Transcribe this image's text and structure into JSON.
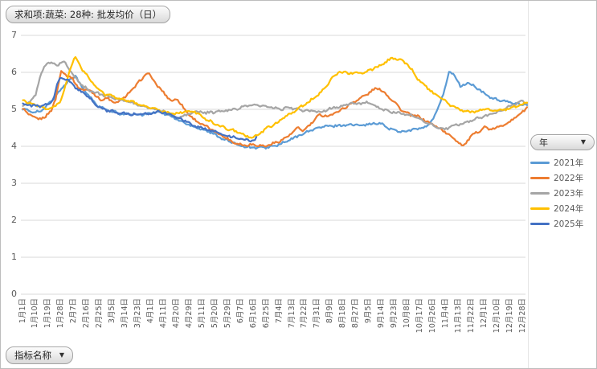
{
  "buttons": {
    "value_field": "求和项:蔬菜: 28种: 批发均价（日）",
    "year_field": "年",
    "indicator_field": "指标名称",
    "dropdown_glyph": "▼"
  },
  "chart_data": {
    "type": "line",
    "title": "",
    "xlabel": "",
    "ylabel": "",
    "ylim": [
      0,
      7
    ],
    "y_ticks": [
      0,
      1,
      2,
      3,
      4,
      5,
      6,
      7
    ],
    "grid": "horizontal",
    "legend_position": "right",
    "legend_title": "年",
    "n_categories": 355,
    "tick_step": 9,
    "x_tick_labels": [
      "1月1日",
      "1月10日",
      "1月19日",
      "1月28日",
      "2月7日",
      "2月16日",
      "2月25日",
      "3月5日",
      "3月14日",
      "3月23日",
      "4月1日",
      "4月11日",
      "4月20日",
      "4月29日",
      "5月11日",
      "5月20日",
      "5月29日",
      "6月7日",
      "6月16日",
      "6月25日",
      "7月4日",
      "7月13日",
      "7月22日",
      "7月31日",
      "8月9日",
      "8月18日",
      "8月27日",
      "9月5日",
      "9月14日",
      "9月23日",
      "10月8日",
      "10月17日",
      "10月26日",
      "11月4日",
      "11月13日",
      "11月22日",
      "12月1日",
      "12月10日",
      "12月19日",
      "12月28日"
    ],
    "series": [
      {
        "name": "2021年",
        "color": "#5B9BD5",
        "points": [
          [
            0,
            5.0
          ],
          [
            0.021,
            4.93
          ],
          [
            0.037,
            4.95
          ],
          [
            0.048,
            5.1
          ],
          [
            0.061,
            5.3
          ],
          [
            0.076,
            5.55
          ],
          [
            0.092,
            5.8
          ],
          [
            0.105,
            5.92
          ],
          [
            0.116,
            5.6
          ],
          [
            0.129,
            5.4
          ],
          [
            0.148,
            5.1
          ],
          [
            0.167,
            4.97
          ],
          [
            0.196,
            4.88
          ],
          [
            0.22,
            4.85
          ],
          [
            0.244,
            4.87
          ],
          [
            0.268,
            4.95
          ],
          [
            0.287,
            4.85
          ],
          [
            0.307,
            4.72
          ],
          [
            0.326,
            4.6
          ],
          [
            0.347,
            4.5
          ],
          [
            0.368,
            4.4
          ],
          [
            0.39,
            4.25
          ],
          [
            0.411,
            4.12
          ],
          [
            0.432,
            4.02
          ],
          [
            0.454,
            3.97
          ],
          [
            0.476,
            3.96
          ],
          [
            0.498,
            4.0
          ],
          [
            0.522,
            4.12
          ],
          [
            0.546,
            4.28
          ],
          [
            0.57,
            4.43
          ],
          [
            0.594,
            4.53
          ],
          [
            0.618,
            4.55
          ],
          [
            0.642,
            4.58
          ],
          [
            0.666,
            4.58
          ],
          [
            0.689,
            4.6
          ],
          [
            0.709,
            4.62
          ],
          [
            0.724,
            4.5
          ],
          [
            0.74,
            4.42
          ],
          [
            0.756,
            4.4
          ],
          [
            0.772,
            4.45
          ],
          [
            0.788,
            4.48
          ],
          [
            0.804,
            4.55
          ],
          [
            0.82,
            4.9
          ],
          [
            0.833,
            5.4
          ],
          [
            0.846,
            6.02
          ],
          [
            0.855,
            5.95
          ],
          [
            0.868,
            5.6
          ],
          [
            0.881,
            5.72
          ],
          [
            0.896,
            5.62
          ],
          [
            0.912,
            5.45
          ],
          [
            0.931,
            5.3
          ],
          [
            0.952,
            5.22
          ],
          [
            0.973,
            5.17
          ],
          [
            0.989,
            5.14
          ],
          [
            1,
            5.12
          ]
        ]
      },
      {
        "name": "2022年",
        "color": "#ED7D31",
        "points": [
          [
            0,
            5.05
          ],
          [
            0.01,
            4.85
          ],
          [
            0.021,
            4.8
          ],
          [
            0.033,
            4.72
          ],
          [
            0.045,
            4.82
          ],
          [
            0.056,
            4.95
          ],
          [
            0.065,
            5.3
          ],
          [
            0.076,
            6.05
          ],
          [
            0.084,
            5.95
          ],
          [
            0.097,
            5.85
          ],
          [
            0.108,
            5.62
          ],
          [
            0.121,
            5.5
          ],
          [
            0.132,
            5.55
          ],
          [
            0.145,
            5.35
          ],
          [
            0.158,
            5.25
          ],
          [
            0.169,
            5.3
          ],
          [
            0.183,
            5.15
          ],
          [
            0.199,
            5.3
          ],
          [
            0.215,
            5.5
          ],
          [
            0.231,
            5.75
          ],
          [
            0.248,
            6.0
          ],
          [
            0.263,
            5.7
          ],
          [
            0.279,
            5.45
          ],
          [
            0.295,
            5.22
          ],
          [
            0.307,
            5.28
          ],
          [
            0.323,
            4.95
          ],
          [
            0.342,
            4.7
          ],
          [
            0.361,
            4.55
          ],
          [
            0.381,
            4.4
          ],
          [
            0.4,
            4.25
          ],
          [
            0.419,
            4.1
          ],
          [
            0.438,
            4.03
          ],
          [
            0.459,
            4.05
          ],
          [
            0.479,
            4.0
          ],
          [
            0.498,
            4.08
          ],
          [
            0.518,
            4.2
          ],
          [
            0.533,
            4.35
          ],
          [
            0.546,
            4.5
          ],
          [
            0.557,
            4.42
          ],
          [
            0.572,
            4.62
          ],
          [
            0.588,
            4.85
          ],
          [
            0.607,
            4.82
          ],
          [
            0.626,
            4.95
          ],
          [
            0.645,
            5.1
          ],
          [
            0.662,
            5.25
          ],
          [
            0.682,
            5.4
          ],
          [
            0.697,
            5.55
          ],
          [
            0.709,
            5.55
          ],
          [
            0.721,
            5.4
          ],
          [
            0.737,
            5.2
          ],
          [
            0.753,
            4.95
          ],
          [
            0.769,
            4.85
          ],
          [
            0.785,
            4.8
          ],
          [
            0.804,
            4.65
          ],
          [
            0.825,
            4.5
          ],
          [
            0.846,
            4.3
          ],
          [
            0.861,
            4.15
          ],
          [
            0.874,
            4.0
          ],
          [
            0.887,
            4.25
          ],
          [
            0.903,
            4.4
          ],
          [
            0.916,
            4.52
          ],
          [
            0.928,
            4.45
          ],
          [
            0.944,
            4.52
          ],
          [
            0.963,
            4.65
          ],
          [
            0.979,
            4.8
          ],
          [
            0.992,
            4.95
          ],
          [
            1,
            5.05
          ]
        ]
      },
      {
        "name": "2023年",
        "color": "#A5A5A5",
        "points": [
          [
            0,
            5.1
          ],
          [
            0.014,
            5.18
          ],
          [
            0.025,
            5.4
          ],
          [
            0.037,
            6.0
          ],
          [
            0.046,
            6.25
          ],
          [
            0.059,
            6.24
          ],
          [
            0.068,
            6.2
          ],
          [
            0.081,
            6.3
          ],
          [
            0.092,
            6.08
          ],
          [
            0.105,
            5.85
          ],
          [
            0.119,
            5.62
          ],
          [
            0.135,
            5.5
          ],
          [
            0.151,
            5.42
          ],
          [
            0.169,
            5.35
          ],
          [
            0.188,
            5.28
          ],
          [
            0.209,
            5.22
          ],
          [
            0.228,
            5.12
          ],
          [
            0.247,
            5.05
          ],
          [
            0.266,
            5.0
          ],
          [
            0.285,
            4.9
          ],
          [
            0.307,
            4.78
          ],
          [
            0.326,
            4.85
          ],
          [
            0.344,
            4.95
          ],
          [
            0.363,
            4.9
          ],
          [
            0.384,
            4.93
          ],
          [
            0.406,
            4.97
          ],
          [
            0.428,
            5.03
          ],
          [
            0.451,
            5.12
          ],
          [
            0.47,
            5.1
          ],
          [
            0.49,
            5.05
          ],
          [
            0.511,
            5.0
          ],
          [
            0.53,
            5.05
          ],
          [
            0.549,
            4.98
          ],
          [
            0.57,
            4.95
          ],
          [
            0.591,
            4.93
          ],
          [
            0.61,
            5.02
          ],
          [
            0.629,
            5.08
          ],
          [
            0.65,
            5.15
          ],
          [
            0.682,
            5.18
          ],
          [
            0.705,
            5.05
          ],
          [
            0.724,
            4.95
          ],
          [
            0.745,
            4.9
          ],
          [
            0.766,
            4.85
          ],
          [
            0.785,
            4.75
          ],
          [
            0.804,
            4.62
          ],
          [
            0.822,
            4.52
          ],
          [
            0.836,
            4.45
          ],
          [
            0.852,
            4.55
          ],
          [
            0.873,
            4.62
          ],
          [
            0.893,
            4.72
          ],
          [
            0.912,
            4.8
          ],
          [
            0.931,
            4.87
          ],
          [
            0.952,
            5.0
          ],
          [
            0.973,
            5.12
          ],
          [
            0.989,
            5.22
          ],
          [
            1,
            5.15
          ]
        ]
      },
      {
        "name": "2024年",
        "color": "#FFC000",
        "points": [
          [
            0,
            5.25
          ],
          [
            0.018,
            5.15
          ],
          [
            0.037,
            5.05
          ],
          [
            0.049,
            5.0
          ],
          [
            0.062,
            5.05
          ],
          [
            0.073,
            5.18
          ],
          [
            0.084,
            5.6
          ],
          [
            0.094,
            6.1
          ],
          [
            0.102,
            6.42
          ],
          [
            0.11,
            6.28
          ],
          [
            0.119,
            6.05
          ],
          [
            0.129,
            5.88
          ],
          [
            0.14,
            5.68
          ],
          [
            0.151,
            5.52
          ],
          [
            0.164,
            5.4
          ],
          [
            0.18,
            5.35
          ],
          [
            0.196,
            5.28
          ],
          [
            0.212,
            5.22
          ],
          [
            0.228,
            5.15
          ],
          [
            0.244,
            5.08
          ],
          [
            0.263,
            5.0
          ],
          [
            0.28,
            4.92
          ],
          [
            0.299,
            4.88
          ],
          [
            0.317,
            4.92
          ],
          [
            0.339,
            4.95
          ],
          [
            0.358,
            4.78
          ],
          [
            0.379,
            4.62
          ],
          [
            0.4,
            4.5
          ],
          [
            0.419,
            4.42
          ],
          [
            0.438,
            4.3
          ],
          [
            0.454,
            4.22
          ],
          [
            0.47,
            4.35
          ],
          [
            0.486,
            4.5
          ],
          [
            0.505,
            4.65
          ],
          [
            0.524,
            4.82
          ],
          [
            0.543,
            5.0
          ],
          [
            0.562,
            5.15
          ],
          [
            0.581,
            5.35
          ],
          [
            0.597,
            5.55
          ],
          [
            0.613,
            5.85
          ],
          [
            0.629,
            6.02
          ],
          [
            0.645,
            5.98
          ],
          [
            0.666,
            5.98
          ],
          [
            0.682,
            6.02
          ],
          [
            0.697,
            6.12
          ],
          [
            0.713,
            6.2
          ],
          [
            0.732,
            6.4
          ],
          [
            0.75,
            6.33
          ],
          [
            0.761,
            6.25
          ],
          [
            0.772,
            6.05
          ],
          [
            0.785,
            5.8
          ],
          [
            0.801,
            5.6
          ],
          [
            0.817,
            5.4
          ],
          [
            0.833,
            5.26
          ],
          [
            0.849,
            5.1
          ],
          [
            0.865,
            5.0
          ],
          [
            0.881,
            4.93
          ],
          [
            0.9,
            4.95
          ],
          [
            0.916,
            5.0
          ],
          [
            0.936,
            4.97
          ],
          [
            0.957,
            5.0
          ],
          [
            0.976,
            5.07
          ],
          [
            0.992,
            5.15
          ],
          [
            1,
            5.2
          ]
        ]
      },
      {
        "name": "2025年",
        "color": "#4472C4",
        "points": [
          [
            0,
            5.15
          ],
          [
            0.018,
            5.1
          ],
          [
            0.037,
            5.08
          ],
          [
            0.053,
            5.15
          ],
          [
            0.062,
            5.35
          ],
          [
            0.068,
            5.7
          ],
          [
            0.075,
            5.87
          ],
          [
            0.084,
            5.8
          ],
          [
            0.096,
            5.73
          ],
          [
            0.107,
            5.55
          ],
          [
            0.119,
            5.45
          ],
          [
            0.132,
            5.3
          ],
          [
            0.145,
            5.12
          ],
          [
            0.159,
            5.0
          ],
          [
            0.175,
            4.95
          ],
          [
            0.193,
            4.9
          ],
          [
            0.212,
            4.87
          ],
          [
            0.231,
            4.85
          ],
          [
            0.25,
            4.88
          ],
          [
            0.269,
            4.96
          ],
          [
            0.288,
            4.87
          ],
          [
            0.307,
            4.78
          ],
          [
            0.323,
            4.68
          ],
          [
            0.339,
            4.55
          ],
          [
            0.352,
            4.52
          ],
          [
            0.365,
            4.45
          ],
          [
            0.379,
            4.4
          ],
          [
            0.393,
            4.33
          ],
          [
            0.409,
            4.28
          ],
          [
            0.425,
            4.22
          ],
          [
            0.441,
            4.17
          ],
          [
            0.454,
            4.15
          ],
          [
            0.463,
            4.22
          ]
        ]
      }
    ]
  }
}
